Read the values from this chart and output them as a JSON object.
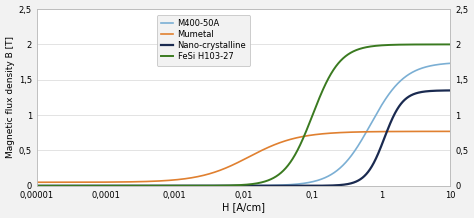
{
  "title": "",
  "xlabel": "H [A/cm]",
  "ylabel": "Magnetic flux density B [T]",
  "background_color": "#f2f2f2",
  "plot_bg_color": "#ffffff",
  "xmin": 1e-05,
  "xmax": 10,
  "ymin": 0,
  "ymax": 2.5,
  "yticks": [
    0,
    0.5,
    1,
    1.5,
    2,
    2.5
  ],
  "ytick_labels": [
    "0",
    "0,5",
    "1",
    "1,5",
    "2",
    "2,5"
  ],
  "xtick_labels": [
    "0,00001",
    "0,0001",
    "0,001",
    "0,01",
    "0,1",
    "1",
    "10"
  ],
  "xtick_values": [
    1e-05,
    0.0001,
    0.001,
    0.01,
    0.1,
    1,
    10
  ],
  "legend_labels": [
    "M400-50A",
    "Mumetal",
    "Nano-crystalline",
    "FeSi H103-27"
  ],
  "colors": {
    "M400-50A": "#7bafd4",
    "Mumetal": "#e08030",
    "Nano-crystalline": "#1a2a50",
    "FeSi H103-27": "#3a7a20"
  },
  "linewidths": {
    "M400-50A": 1.2,
    "Mumetal": 1.2,
    "Nano-crystalline": 1.6,
    "FeSi H103-27": 1.4
  },
  "curve_params": {
    "M400-50A": {
      "x0": 0.7,
      "k": 4.0,
      "ymax": 1.75,
      "ymin": 0.0
    },
    "Mumetal": {
      "x0": 0.012,
      "k": 2.8,
      "ymax": 0.77,
      "ymin": 0.05
    },
    "Nano-crystalline": {
      "x0": 1.1,
      "k": 7.5,
      "ymax": 1.35,
      "ymin": 0.0
    },
    "FeSi H103-27": {
      "x0": 0.1,
      "k": 5.0,
      "ymax": 2.0,
      "ymin": 0.0
    }
  }
}
